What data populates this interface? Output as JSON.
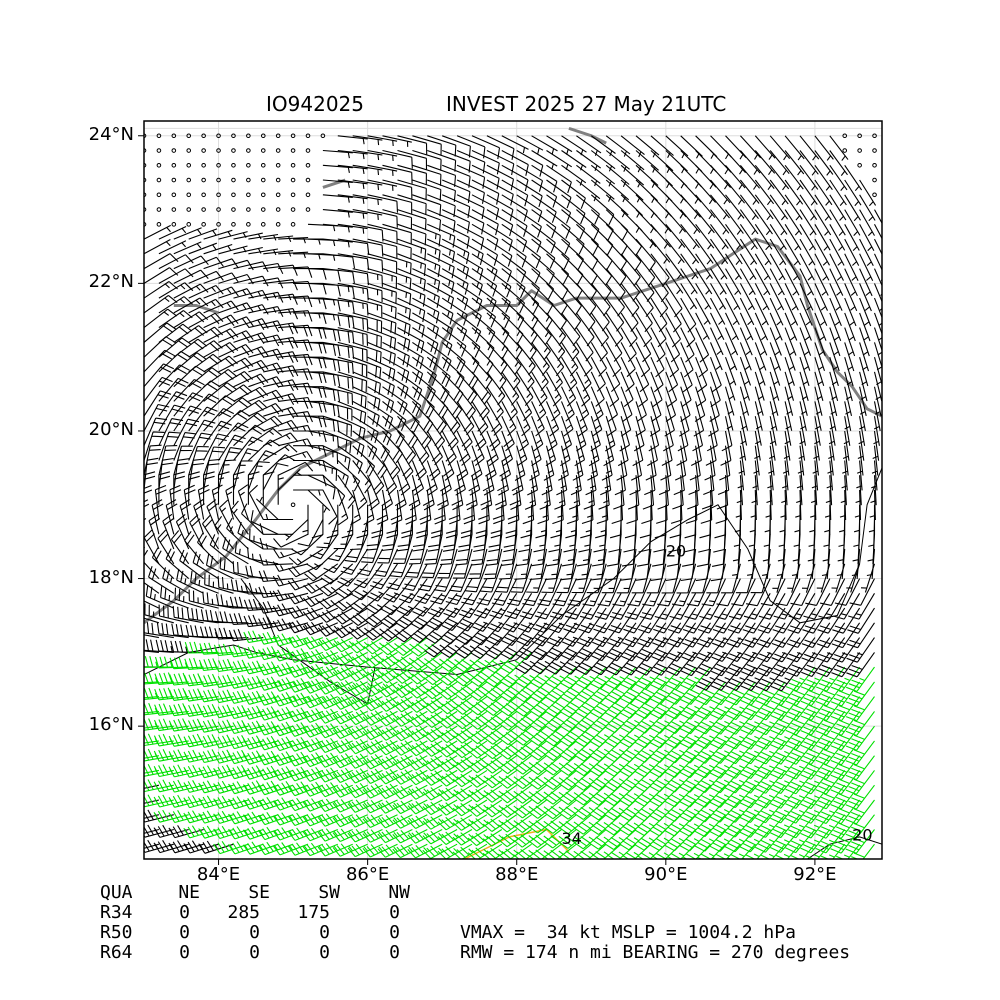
{
  "title": {
    "left": "IO942025",
    "right": "INVEST 2025 27 May 21UTC"
  },
  "chart_data": {
    "type": "wind_barb_map",
    "x_ticks": [
      "84°E",
      "86°E",
      "88°E",
      "90°E",
      "92°E"
    ],
    "y_ticks": [
      "24°N",
      "22°N",
      "20°N",
      "18°N",
      "16°N"
    ],
    "xlim": [
      83.0,
      92.9
    ],
    "ylim": [
      14.2,
      24.2
    ],
    "grid": true,
    "storm_center": {
      "lon": 85.0,
      "lat": 19.0
    },
    "wind_speed_contours_kt": [
      20,
      34
    ],
    "barb_color_below_34kt": "#000000",
    "barb_color_34_to_50kt": "#00e000",
    "contour_34kt_color": "#f0b020",
    "coastline_color": "#808080"
  },
  "quadrant_table": {
    "header": [
      "QUA",
      "NE",
      "SE",
      "SW",
      "NW"
    ],
    "rows": [
      {
        "label": "R34",
        "values": [
          "0",
          "285",
          "175",
          "0"
        ]
      },
      {
        "label": "R50",
        "values": [
          "0",
          "0",
          "0",
          "0"
        ]
      },
      {
        "label": "R64",
        "values": [
          "0",
          "0",
          "0",
          "0"
        ]
      }
    ]
  },
  "summary": {
    "line1": "VMAX =  34 kt MSLP = 1004.2 hPa",
    "line2": "RMW = 174 n mi BEARING = 270 degrees"
  },
  "contour_labels": [
    "20",
    "34"
  ]
}
